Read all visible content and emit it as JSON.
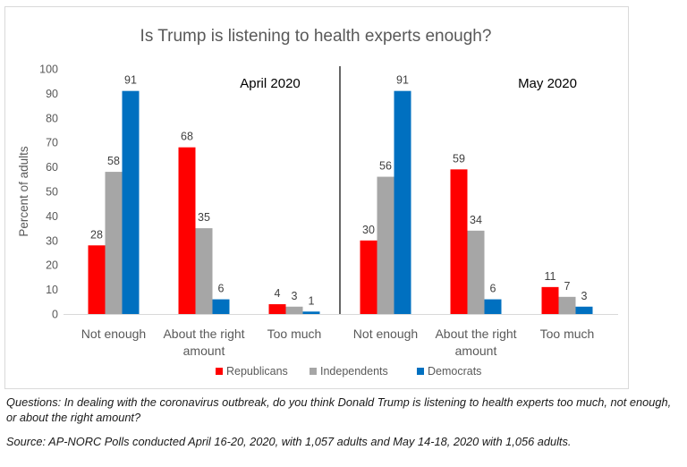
{
  "chart_data": {
    "type": "bar",
    "title": "Is Trump is listening to health experts enough?",
    "ylabel": "Percent of adults",
    "xlabel": "",
    "ylim": [
      0,
      100
    ],
    "yticks": [
      0,
      10,
      20,
      30,
      40,
      50,
      60,
      70,
      80,
      90,
      100
    ],
    "grid": false,
    "legend_position": "bottom",
    "panels": [
      {
        "label": "April 2020",
        "categories": [
          [
            "Not enough"
          ],
          [
            "About the right",
            "amount"
          ],
          [
            "Too much"
          ]
        ],
        "series": [
          {
            "name": "Republicans",
            "color": "#ff0000",
            "values": [
              28,
              68,
              4
            ]
          },
          {
            "name": "Independents",
            "color": "#a6a6a6",
            "values": [
              58,
              35,
              3
            ]
          },
          {
            "name": "Democrats",
            "color": "#0070c0",
            "values": [
              91,
              6,
              1
            ]
          }
        ]
      },
      {
        "label": "May 2020",
        "categories": [
          [
            "Not enough"
          ],
          [
            "About the right",
            "amount"
          ],
          [
            "Too much"
          ]
        ],
        "series": [
          {
            "name": "Republicans",
            "color": "#ff0000",
            "values": [
              30,
              59,
              11
            ]
          },
          {
            "name": "Independents",
            "color": "#a6a6a6",
            "values": [
              56,
              34,
              7
            ]
          },
          {
            "name": "Democrats",
            "color": "#0070c0",
            "values": [
              91,
              6,
              3
            ]
          }
        ]
      }
    ],
    "legend": [
      "Republicans",
      "Independents",
      "Democrats"
    ]
  },
  "captions": {
    "questions": "Questions: In dealing with the coronavirus outbreak, do you think Donald Trump is listening to health experts too much, not enough, or about the right amount?",
    "source": "Source: AP-NORC Polls conducted April 16-20, 2020, with 1,057 adults and May 14-18, 2020 with 1,056 adults."
  }
}
